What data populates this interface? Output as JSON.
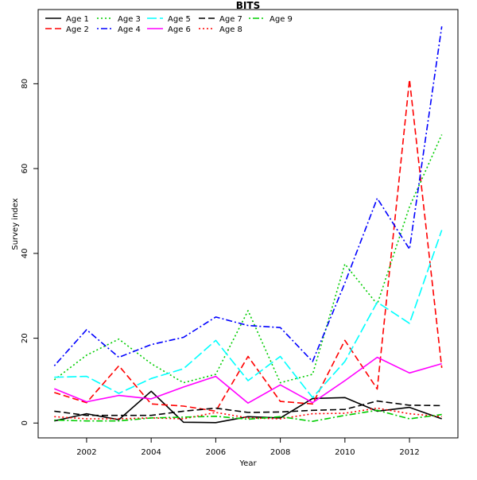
{
  "chart_data": {
    "type": "line",
    "title": "BITS",
    "xlabel": "Year",
    "ylabel": "Survey index",
    "xlim": [
      2000.5,
      2013.5
    ],
    "ylim": [
      -3.5,
      97.5
    ],
    "xticks": [
      2002,
      2004,
      2006,
      2008,
      2010,
      2012
    ],
    "yticks": [
      0,
      20,
      40,
      60,
      80
    ],
    "legend_position": "top-left",
    "x": [
      2001,
      2002,
      2003,
      2004,
      2005,
      2006,
      2007,
      2008,
      2009,
      2010,
      2011,
      2012,
      2013
    ],
    "series": [
      {
        "name": "Age 1",
        "color": "#000000",
        "dash": "solid",
        "values": [
          0.5,
          2.2,
          0.8,
          7.5,
          0.2,
          0.1,
          1.5,
          1.2,
          5.8,
          6.0,
          2.8,
          3.7,
          1.0
        ]
      },
      {
        "name": "Age 2",
        "color": "#ff0000",
        "dash": "dashed",
        "values": [
          7.2,
          4.8,
          13.5,
          4.5,
          4.0,
          2.8,
          15.7,
          5.1,
          4.5,
          19.5,
          8.0,
          81.0,
          13.0
        ]
      },
      {
        "name": "Age 3",
        "color": "#00cd00",
        "dash": "dotted",
        "values": [
          10.2,
          16.0,
          19.8,
          14.0,
          9.5,
          11.5,
          26.5,
          9.5,
          11.5,
          37.5,
          28.0,
          51.0,
          68.0
        ]
      },
      {
        "name": "Age 4",
        "color": "#0000ff",
        "dash": "dotdash",
        "values": [
          13.5,
          22.0,
          15.5,
          18.5,
          20.2,
          25.0,
          23.0,
          22.5,
          14.5,
          33.0,
          53.0,
          41.0,
          93.5
        ]
      },
      {
        "name": "Age 5",
        "color": "#00ffff",
        "dash": "longdash",
        "values": [
          10.8,
          11.0,
          7.0,
          10.5,
          12.8,
          19.5,
          10.0,
          15.7,
          6.0,
          14.5,
          28.5,
          23.5,
          45.5
        ]
      },
      {
        "name": "Age 6",
        "color": "#ff00ff",
        "dash": "solid",
        "values": [
          8.1,
          5.0,
          6.5,
          5.7,
          8.5,
          11.0,
          4.7,
          9.0,
          4.8,
          10.0,
          15.5,
          11.8,
          14.0
        ]
      },
      {
        "name": "Age 7",
        "color": "#000000",
        "dash": "dashed",
        "values": [
          2.8,
          1.8,
          1.8,
          1.8,
          2.8,
          3.5,
          2.5,
          2.6,
          3.0,
          3.2,
          5.2,
          4.2,
          4.1
        ]
      },
      {
        "name": "Age 8",
        "color": "#ff0000",
        "dash": "dotted",
        "values": [
          1.5,
          1.0,
          1.0,
          1.2,
          1.0,
          2.5,
          1.2,
          1.0,
          2.2,
          2.3,
          3.5,
          2.2,
          1.5
        ]
      },
      {
        "name": "Age 9",
        "color": "#00cd00",
        "dash": "dotdash",
        "values": [
          0.7,
          0.5,
          0.5,
          1.2,
          1.4,
          1.6,
          0.9,
          1.5,
          0.4,
          1.8,
          3.0,
          1.0,
          2.0
        ]
      }
    ]
  }
}
